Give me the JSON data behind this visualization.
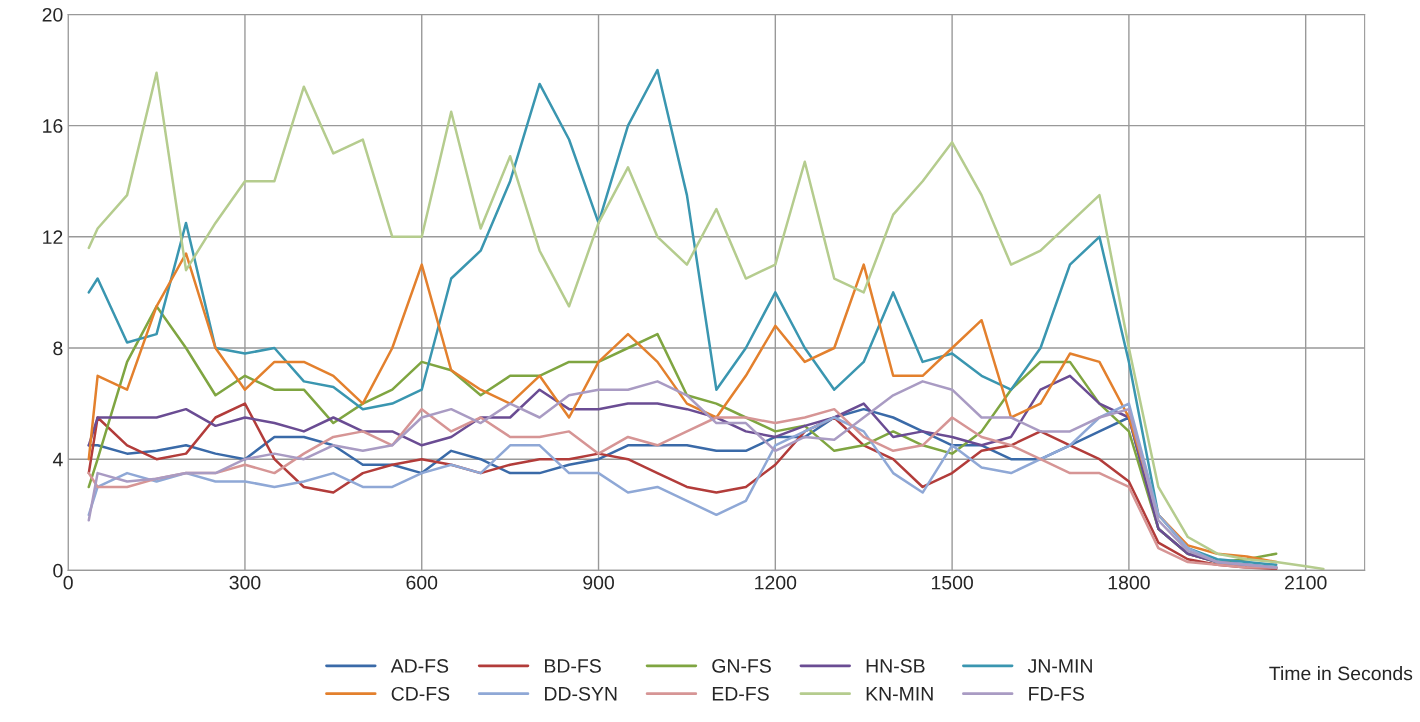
{
  "chart_data": {
    "type": "line",
    "xlabel": "Time in Seconds",
    "x": [
      35,
      50,
      100,
      150,
      200,
      250,
      300,
      350,
      400,
      450,
      500,
      550,
      600,
      650,
      700,
      750,
      800,
      850,
      900,
      950,
      1000,
      1050,
      1100,
      1150,
      1200,
      1250,
      1300,
      1350,
      1400,
      1450,
      1500,
      1550,
      1600,
      1650,
      1700,
      1750,
      1800,
      1850,
      1900,
      1950,
      2000,
      2050,
      2100,
      2130
    ],
    "xlim": [
      0,
      2200
    ],
    "xticks": [
      0,
      300,
      600,
      900,
      1200,
      1500,
      1800,
      2100
    ],
    "ylim": [
      0,
      20
    ],
    "yticks": [
      0,
      4,
      8,
      12,
      16,
      20
    ],
    "grid": true,
    "legend": "bottom",
    "line_style": "solid",
    "series": [
      {
        "name": "AD-FS",
        "color": "#3a6aa8",
        "values": [
          4.5,
          4.5,
          4.2,
          4.3,
          4.5,
          4.2,
          4.0,
          4.8,
          4.8,
          4.5,
          3.8,
          3.8,
          3.5,
          4.3,
          4.0,
          3.5,
          3.5,
          3.8,
          4.0,
          4.5,
          4.5,
          4.5,
          4.3,
          4.3,
          4.8,
          4.8,
          5.5,
          5.8,
          5.5,
          5.0,
          4.5,
          4.5,
          4.0,
          4.0,
          4.5,
          5.0,
          5.5,
          1.5,
          0.6,
          0.3,
          0.2,
          0.1,
          null,
          null
        ]
      },
      {
        "name": "BD-FS",
        "color": "#b23c3a",
        "values": [
          3.5,
          5.5,
          4.5,
          4.0,
          4.2,
          5.5,
          6.0,
          4.0,
          3.0,
          2.8,
          3.5,
          3.8,
          4.0,
          3.8,
          3.5,
          3.8,
          4.0,
          4.0,
          4.2,
          4.0,
          3.5,
          3.0,
          2.8,
          3.0,
          3.8,
          5.0,
          5.5,
          4.5,
          4.0,
          3.0,
          3.5,
          4.3,
          4.5,
          5.0,
          4.5,
          4.0,
          3.2,
          1.0,
          0.4,
          0.2,
          0.1,
          0.05,
          null,
          null
        ]
      },
      {
        "name": "GN-FS",
        "color": "#7fa541",
        "values": [
          3.0,
          4.0,
          7.5,
          9.5,
          8.0,
          6.3,
          7.0,
          6.5,
          6.5,
          5.3,
          6.0,
          6.5,
          7.5,
          7.2,
          6.3,
          7.0,
          7.0,
          7.5,
          7.5,
          8.0,
          8.5,
          6.3,
          6.0,
          5.5,
          5.0,
          5.2,
          4.3,
          4.5,
          5.0,
          4.5,
          4.2,
          5.0,
          6.5,
          7.5,
          7.5,
          6.0,
          5.0,
          1.5,
          0.6,
          0.3,
          0.4,
          0.6,
          null,
          null
        ]
      },
      {
        "name": "HN-SB",
        "color": "#6a4c93",
        "values": [
          4.5,
          5.5,
          5.5,
          5.5,
          5.8,
          5.2,
          5.5,
          5.3,
          5.0,
          5.5,
          5.0,
          5.0,
          4.5,
          4.8,
          5.5,
          5.5,
          6.5,
          5.8,
          5.8,
          6.0,
          6.0,
          5.8,
          5.5,
          5.0,
          4.8,
          5.2,
          5.5,
          6.0,
          4.8,
          5.0,
          4.8,
          4.5,
          4.8,
          6.5,
          7.0,
          6.0,
          5.5,
          1.5,
          0.6,
          0.3,
          0.2,
          0.1,
          null,
          null
        ]
      },
      {
        "name": "JN-MIN",
        "color": "#3a96b0",
        "values": [
          10.0,
          10.5,
          8.2,
          8.5,
          12.5,
          8.0,
          7.8,
          8.0,
          6.8,
          6.6,
          5.8,
          6.0,
          6.5,
          10.5,
          11.5,
          14.0,
          17.5,
          15.5,
          12.5,
          16.0,
          18.0,
          13.5,
          6.5,
          8.0,
          10.0,
          8.0,
          6.5,
          7.5,
          10.0,
          7.5,
          7.8,
          7.0,
          6.5,
          8.0,
          11.0,
          12.0,
          7.5,
          2.0,
          0.8,
          0.4,
          0.3,
          0.2,
          null,
          null
        ]
      },
      {
        "name": "CD-FS",
        "color": "#e3802d",
        "values": [
          4.0,
          7.0,
          6.5,
          9.5,
          11.4,
          8.0,
          6.5,
          7.5,
          7.5,
          7.0,
          6.0,
          8.0,
          11.0,
          7.2,
          6.5,
          6.0,
          7.0,
          5.5,
          7.5,
          8.5,
          7.5,
          6.0,
          5.5,
          7.0,
          8.8,
          7.5,
          8.0,
          11.0,
          7.0,
          7.0,
          8.0,
          9.0,
          5.5,
          6.0,
          7.8,
          7.5,
          5.5,
          2.0,
          0.9,
          0.6,
          0.5,
          0.3,
          null,
          null
        ]
      },
      {
        "name": "DD-SYN",
        "color": "#8fa8d6",
        "values": [
          2.0,
          3.0,
          3.5,
          3.2,
          3.5,
          3.2,
          3.2,
          3.0,
          3.2,
          3.5,
          3.0,
          3.0,
          3.5,
          3.8,
          3.5,
          4.5,
          4.5,
          3.5,
          3.5,
          2.8,
          3.0,
          2.5,
          2.0,
          2.5,
          4.5,
          5.0,
          5.5,
          5.0,
          3.5,
          2.8,
          4.5,
          3.7,
          3.5,
          4.0,
          4.5,
          5.5,
          6.0,
          2.0,
          0.8,
          0.3,
          0.2,
          0.1,
          null,
          null
        ]
      },
      {
        "name": "ED-FS",
        "color": "#d69595",
        "values": [
          3.5,
          3.0,
          3.0,
          3.3,
          3.5,
          3.5,
          3.8,
          3.5,
          4.2,
          4.8,
          5.0,
          4.5,
          5.8,
          5.0,
          5.5,
          4.8,
          4.8,
          5.0,
          4.2,
          4.8,
          4.5,
          5.0,
          5.5,
          5.5,
          5.3,
          5.5,
          5.8,
          4.8,
          4.3,
          4.5,
          5.5,
          4.8,
          4.5,
          4.0,
          3.5,
          3.5,
          3.0,
          0.8,
          0.3,
          0.2,
          0.1,
          0.1,
          null,
          null
        ]
      },
      {
        "name": "KN-MIN",
        "color": "#b5cc8e",
        "values": [
          11.6,
          12.3,
          13.5,
          17.9,
          10.8,
          12.5,
          14.0,
          14.0,
          17.4,
          15.0,
          15.5,
          12.0,
          12.0,
          16.5,
          12.3,
          14.9,
          11.5,
          9.5,
          12.5,
          14.5,
          12.0,
          11.0,
          13.0,
          10.5,
          11.0,
          14.7,
          10.5,
          10.0,
          12.8,
          14.0,
          15.4,
          13.5,
          11.0,
          11.5,
          12.5,
          13.5,
          8.0,
          3.0,
          1.2,
          0.6,
          0.4,
          0.3,
          0.15,
          0.05
        ]
      },
      {
        "name": "FD-FS",
        "color": "#a99bc3",
        "values": [
          1.8,
          3.5,
          3.2,
          3.3,
          3.5,
          3.5,
          4.0,
          4.2,
          4.0,
          4.5,
          4.3,
          4.5,
          5.5,
          5.8,
          5.3,
          6.0,
          5.5,
          6.3,
          6.5,
          6.5,
          6.8,
          6.3,
          5.3,
          5.3,
          4.3,
          4.8,
          4.7,
          5.5,
          6.3,
          6.8,
          6.5,
          5.5,
          5.5,
          5.0,
          5.0,
          5.5,
          5.8,
          1.8,
          0.7,
          0.3,
          0.2,
          0.1,
          null,
          null
        ]
      }
    ]
  }
}
